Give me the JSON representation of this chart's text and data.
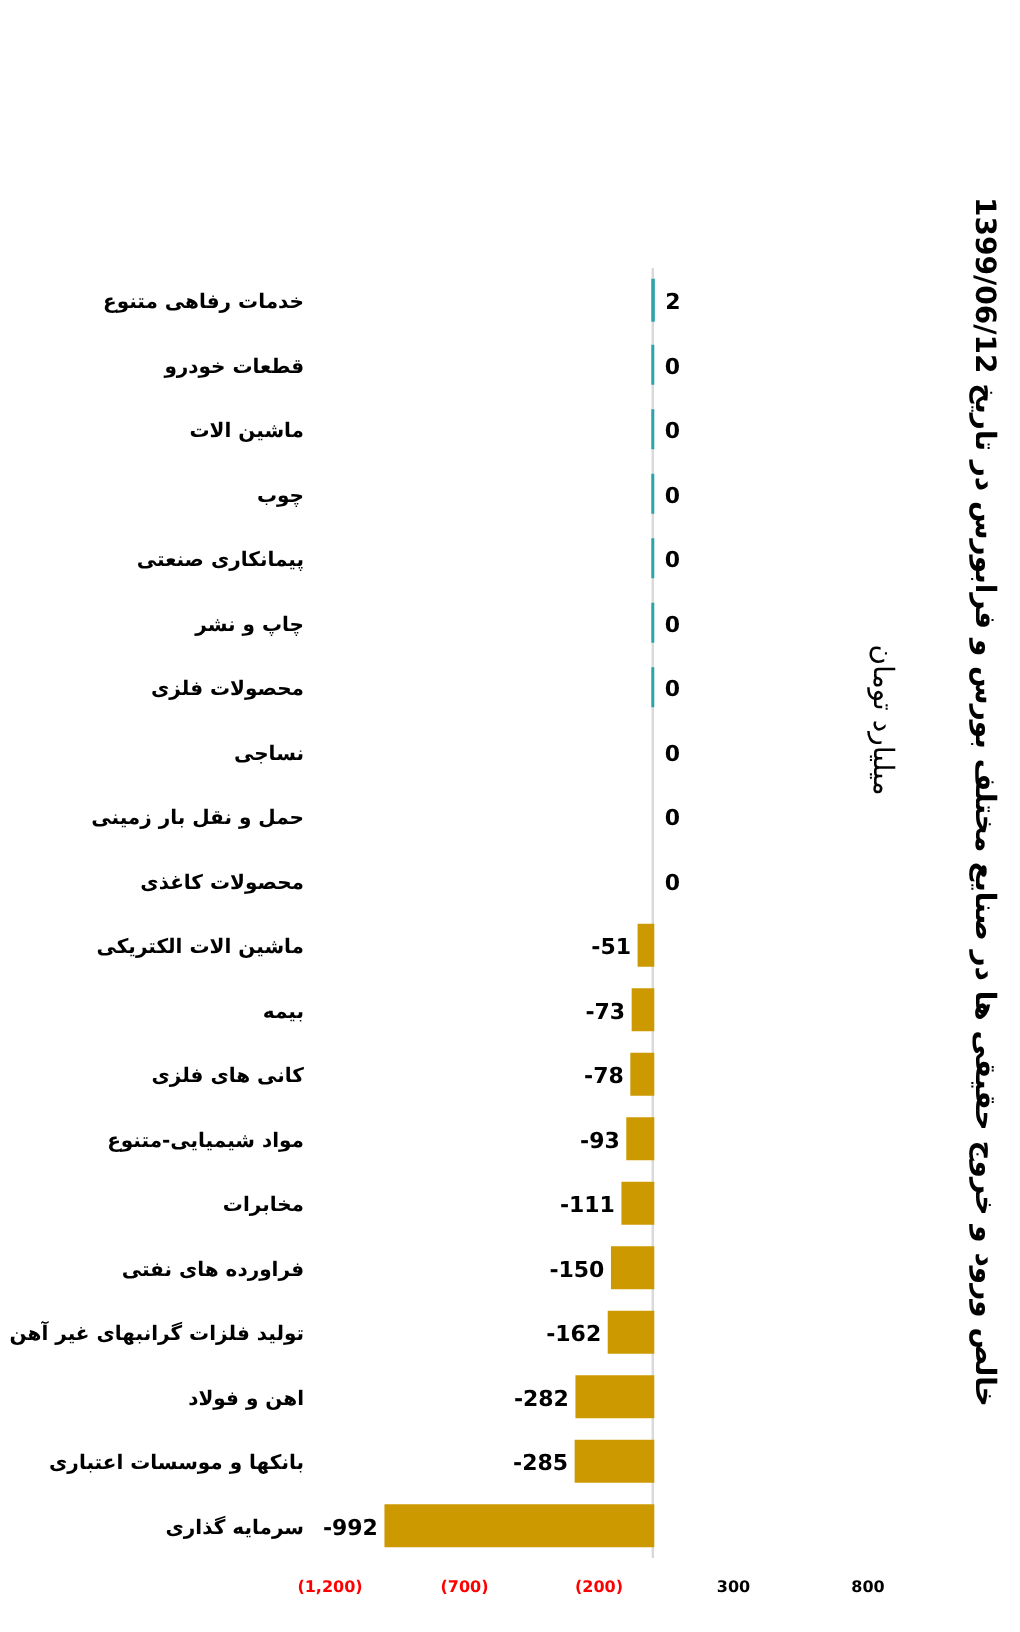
{
  "chart_data": {
    "type": "bar",
    "orientation": "horizontal",
    "title": "خالص ورود و خروج حقیقی ها در صنایع مختلف بورس و فرابورس در تاریخ 1399/06/12",
    "subtitle": "میلیارد تومان",
    "categories": [
      "خدمات رفاهی متنوع",
      "قطعات خودرو",
      "ماشین الات",
      "چوب",
      "پیمانکاری صنعتی",
      "چاپ و نشر",
      "محصولات فلزی",
      "نساجی",
      "حمل و نقل بار زمینی",
      "محصولات کاغذی",
      "ماشین الات الکتریکی",
      "بیمه",
      "کانی های فلزی",
      "مواد شیمیایی-متنوع",
      "مخابرات",
      "فراورده های نفتی",
      "تولید فلزات گرانبهای غیر آهن",
      "اهن و فولاد",
      "بانکها و موسسات اعتباری",
      "سرمایه گذاری"
    ],
    "values": [
      2,
      0,
      0,
      0,
      0,
      0,
      0,
      0,
      0,
      0,
      -51,
      -73,
      -78,
      -93,
      -111,
      -150,
      -162,
      -282,
      -285,
      -992
    ],
    "colors": [
      "#2ea3aa",
      "#2ea3aa",
      "#2ea3aa",
      "#2ea3aa",
      "#2ea3aa",
      "#2ea3aa",
      "#2ea3aa",
      null,
      null,
      null,
      "#cc9900",
      "#cc9900",
      "#cc9900",
      "#cc9900",
      "#cc9900",
      "#cc9900",
      "#cc9900",
      "#cc9900",
      "#cc9900",
      "#cc9900"
    ],
    "xlim": [
      -1200,
      800
    ],
    "xticks": [
      {
        "value": -1200,
        "label": "(1,200)"
      },
      {
        "value": -700,
        "label": "(700)"
      },
      {
        "value": -200,
        "label": "(200)"
      },
      300,
      800
    ],
    "data_labels": true
  }
}
